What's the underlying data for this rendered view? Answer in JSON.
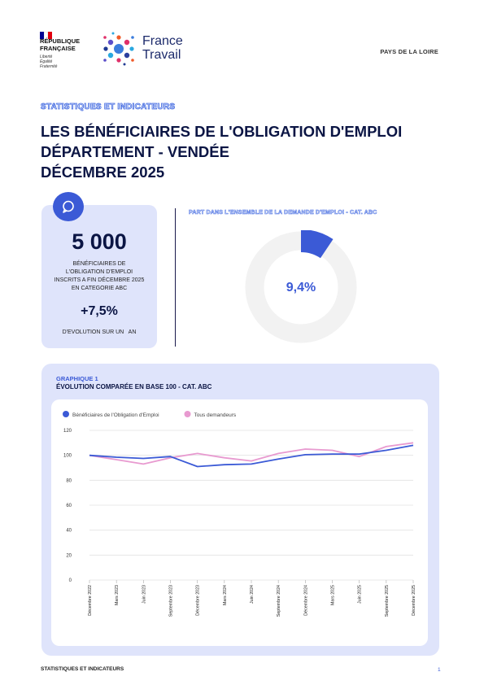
{
  "header": {
    "republic_line1": "RÉPUBLIQUE",
    "republic_line2": "FRANÇAISE",
    "republic_motto": "Liberté Égalité Fraternité",
    "brand_line1": "France",
    "brand_line2": "Travail",
    "region": "PAYS DE LA LOIRE",
    "flag_colors": [
      "#000091",
      "#ffffff",
      "#e1000f"
    ]
  },
  "kicker": "STATISTIQUES ET INDICATEURS",
  "title": {
    "line1": "LES BÉNÉFICIAIRES DE L'OBLIGATION D'EMPLOI",
    "line2": "DÉPARTEMENT - VENDÉE",
    "line3": "DÉCEMBRE 2025"
  },
  "kpi": {
    "icon": "chat-bubble-icon",
    "value": "5 000",
    "desc_line1": "BÉNÉFICIAIRES DE",
    "desc_line2": "L'OBLIGATION D'EMPLOI",
    "desc_line3": "INSCRITS A FIN DÉCEMBRE 2025",
    "desc_line4": "EN CATEGORIE ABC",
    "evolution": "+7,5%",
    "evolution_label": "D'EVOLUTION SUR UN   AN"
  },
  "share": {
    "title": "PART DANS L'ENSEMBLE DE LA DEMANDE D'EMPLOI - CAT. ABC",
    "value_label": "9,4%",
    "fraction": 0.094,
    "fill_color": "#3b5ad6",
    "track_color": "#f2f2f2"
  },
  "chart_section": {
    "kicker": "GRAPHIQUE 1",
    "title": "ÉVOLUTION COMPARÉE EN BASE 100 - CAT. ABC"
  },
  "chart_data": {
    "type": "line",
    "title": "",
    "xlabel": "",
    "ylabel": "",
    "ylim": [
      0,
      120
    ],
    "yticks": [
      0,
      20,
      40,
      60,
      80,
      100,
      120
    ],
    "grid": true,
    "legend_position": "top-left",
    "x": [
      "Décembre 2022",
      "Mars 2023",
      "Juin 2023",
      "Septembre 2023",
      "Décembre 2023",
      "Mars 2024",
      "Juin 2024",
      "Septembre 2024",
      "Décembre 2024",
      "Mars 2025",
      "Juin 2025",
      "Septembre 2025",
      "Décembre 2025"
    ],
    "series": [
      {
        "name": "Bénéficiaires de l'Obligation d'Emploi",
        "color": "#3b5ad6",
        "values": [
          100,
          98.5,
          97.5,
          99,
          91,
          92.5,
          93,
          97,
          100.5,
          101,
          101,
          104,
          108
        ]
      },
      {
        "name": "Tous demandeurs",
        "color": "#e89ad0",
        "values": [
          100,
          96.5,
          93,
          98,
          101.5,
          98,
          95.5,
          101.5,
          105,
          104,
          99,
          107,
          110
        ]
      }
    ]
  },
  "footer": {
    "left": "STATISTIQUES ET INDICATEURS",
    "page": "1"
  }
}
